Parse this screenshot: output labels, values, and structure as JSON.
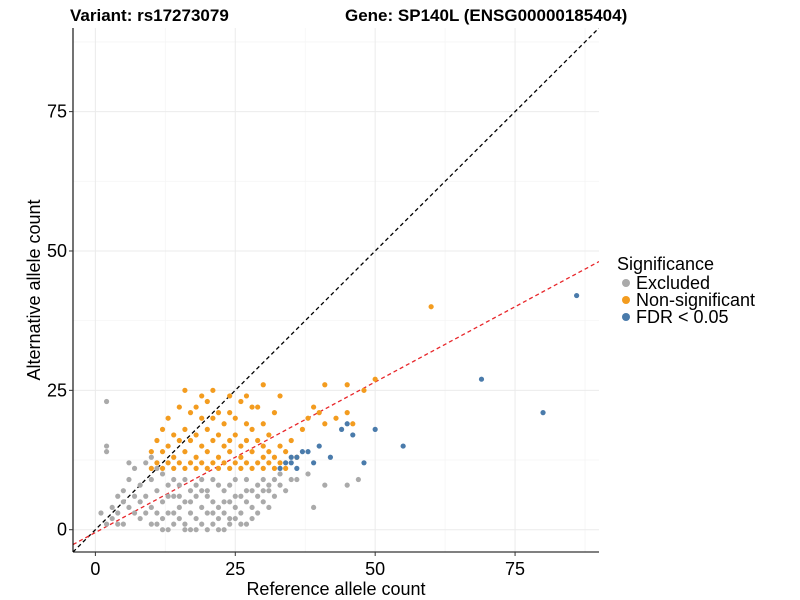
{
  "chart_data": {
    "type": "scatter",
    "title_left": "Variant: rs17273079",
    "title_right": "Gene: SP140L (ENSG00000185404)",
    "xlabel": "Reference allele count",
    "ylabel": "Alternative allele count",
    "xlim": [
      -4,
      90
    ],
    "ylim": [
      -4,
      90
    ],
    "xticks": [
      0,
      25,
      50,
      75
    ],
    "yticks": [
      0,
      25,
      50,
      75
    ],
    "xtick_labels": [
      "0",
      "25",
      "50",
      "75"
    ],
    "ytick_labels": [
      "0",
      "25",
      "50",
      "75"
    ],
    "legend": {
      "title": "Significance",
      "items": [
        {
          "label": "Excluded",
          "color": "#aaaaaa"
        },
        {
          "label": "Non-significant",
          "color": "#f39c1f"
        },
        {
          "label": "FDR < 0.05",
          "color": "#4a7bab"
        }
      ]
    },
    "reference_lines": [
      {
        "name": "identity",
        "slope": 1,
        "intercept": 0,
        "color": "#000000",
        "dash": "dashed"
      },
      {
        "name": "regression",
        "slope": 0.54,
        "intercept": -0.5,
        "color": "#e8262a",
        "dash": "dashed"
      }
    ],
    "series": [
      {
        "name": "Excluded",
        "color": "#aaaaaa",
        "points": [
          [
            2,
            23
          ],
          [
            2,
            15
          ],
          [
            2,
            14
          ],
          [
            1,
            3
          ],
          [
            2,
            1
          ],
          [
            3,
            2
          ],
          [
            3,
            4
          ],
          [
            4,
            3
          ],
          [
            4,
            6
          ],
          [
            5,
            5
          ],
          [
            5,
            7
          ],
          [
            6,
            4
          ],
          [
            6,
            9
          ],
          [
            6,
            12
          ],
          [
            7,
            6
          ],
          [
            7,
            11
          ],
          [
            8,
            2
          ],
          [
            8,
            8
          ],
          [
            5,
            1
          ],
          [
            4,
            1
          ],
          [
            9,
            3
          ],
          [
            9,
            6
          ],
          [
            9,
            12
          ],
          [
            10,
            4
          ],
          [
            10,
            9
          ],
          [
            10,
            13
          ],
          [
            11,
            1
          ],
          [
            11,
            7
          ],
          [
            11,
            11
          ],
          [
            12,
            2
          ],
          [
            12,
            5
          ],
          [
            12,
            10
          ],
          [
            13,
            0
          ],
          [
            13,
            3
          ],
          [
            13,
            8
          ],
          [
            14,
            1
          ],
          [
            14,
            6
          ],
          [
            14,
            9
          ],
          [
            15,
            2
          ],
          [
            15,
            4
          ],
          [
            15,
            8
          ],
          [
            16,
            1
          ],
          [
            16,
            5
          ],
          [
            16,
            9
          ],
          [
            17,
            0
          ],
          [
            17,
            3
          ],
          [
            17,
            7
          ],
          [
            18,
            2
          ],
          [
            18,
            6
          ],
          [
            18,
            8
          ],
          [
            19,
            1
          ],
          [
            19,
            4
          ],
          [
            19,
            9
          ],
          [
            20,
            3
          ],
          [
            20,
            6
          ],
          [
            20,
            7
          ],
          [
            21,
            1
          ],
          [
            21,
            5
          ],
          [
            21,
            9
          ],
          [
            22,
            2
          ],
          [
            22,
            4
          ],
          [
            22,
            8
          ],
          [
            23,
            0
          ],
          [
            23,
            3
          ],
          [
            23,
            7
          ],
          [
            24,
            1
          ],
          [
            24,
            5
          ],
          [
            24,
            8
          ],
          [
            25,
            2
          ],
          [
            25,
            4
          ],
          [
            25,
            9
          ],
          [
            26,
            3
          ],
          [
            26,
            6
          ],
          [
            27,
            1
          ],
          [
            27,
            5
          ],
          [
            27,
            9
          ],
          [
            28,
            2
          ],
          [
            28,
            4
          ],
          [
            28,
            7
          ],
          [
            29,
            3
          ],
          [
            29,
            6
          ],
          [
            30,
            5
          ],
          [
            30,
            9
          ],
          [
            31,
            4
          ],
          [
            31,
            7
          ],
          [
            32,
            6
          ],
          [
            32,
            9
          ],
          [
            33,
            8
          ],
          [
            34,
            7
          ],
          [
            35,
            9
          ],
          [
            24,
            2
          ],
          [
            26,
            1
          ],
          [
            22,
            0
          ],
          [
            16,
            0
          ],
          [
            30,
            7
          ],
          [
            12,
            0
          ],
          [
            18,
            0
          ],
          [
            14,
            3
          ],
          [
            20,
            0
          ],
          [
            10,
            1
          ],
          [
            8,
            5
          ],
          [
            7,
            3
          ],
          [
            11,
            3
          ],
          [
            13,
            6
          ],
          [
            15,
            6
          ],
          [
            17,
            5
          ],
          [
            19,
            7
          ],
          [
            21,
            3
          ],
          [
            23,
            5
          ],
          [
            25,
            6
          ],
          [
            27,
            7
          ],
          [
            29,
            8
          ],
          [
            31,
            8
          ],
          [
            33,
            10
          ],
          [
            36,
            9
          ],
          [
            38,
            10
          ],
          [
            39,
            4
          ],
          [
            41,
            8
          ],
          [
            45,
            8
          ],
          [
            47,
            9
          ]
        ]
      },
      {
        "name": "Non-significant",
        "color": "#f39c1f",
        "points": [
          [
            10,
            11
          ],
          [
            10,
            14
          ],
          [
            11,
            12
          ],
          [
            11,
            16
          ],
          [
            12,
            11
          ],
          [
            12,
            14
          ],
          [
            12,
            18
          ],
          [
            13,
            12
          ],
          [
            13,
            15
          ],
          [
            13,
            20
          ],
          [
            14,
            11
          ],
          [
            14,
            13
          ],
          [
            14,
            17
          ],
          [
            15,
            12
          ],
          [
            15,
            16
          ],
          [
            15,
            22
          ],
          [
            16,
            11
          ],
          [
            16,
            14
          ],
          [
            16,
            18
          ],
          [
            17,
            12
          ],
          [
            17,
            16
          ],
          [
            17,
            21
          ],
          [
            18,
            11
          ],
          [
            18,
            13
          ],
          [
            18,
            17
          ],
          [
            19,
            12
          ],
          [
            19,
            15
          ],
          [
            19,
            20
          ],
          [
            20,
            11
          ],
          [
            20,
            14
          ],
          [
            20,
            18
          ],
          [
            20,
            23
          ],
          [
            21,
            12
          ],
          [
            21,
            16
          ],
          [
            21,
            25
          ],
          [
            22,
            11
          ],
          [
            22,
            13
          ],
          [
            22,
            17
          ],
          [
            22,
            21
          ],
          [
            23,
            12
          ],
          [
            23,
            15
          ],
          [
            23,
            19
          ],
          [
            24,
            11
          ],
          [
            24,
            14
          ],
          [
            24,
            16
          ],
          [
            25,
            12
          ],
          [
            25,
            17
          ],
          [
            25,
            20
          ],
          [
            26,
            11
          ],
          [
            26,
            13
          ],
          [
            26,
            15
          ],
          [
            26,
            23
          ],
          [
            27,
            12
          ],
          [
            27,
            16
          ],
          [
            27,
            19
          ],
          [
            28,
            11
          ],
          [
            28,
            14
          ],
          [
            28,
            18
          ],
          [
            29,
            12
          ],
          [
            29,
            16
          ],
          [
            29,
            22
          ],
          [
            30,
            11
          ],
          [
            30,
            13
          ],
          [
            30,
            15
          ],
          [
            30,
            19
          ],
          [
            31,
            12
          ],
          [
            31,
            14
          ],
          [
            31,
            17
          ],
          [
            32,
            11
          ],
          [
            32,
            13
          ],
          [
            32,
            21
          ],
          [
            33,
            12
          ],
          [
            33,
            15
          ],
          [
            34,
            11
          ],
          [
            34,
            14
          ],
          [
            35,
            16
          ],
          [
            36,
            13
          ],
          [
            37,
            18
          ],
          [
            38,
            20
          ],
          [
            39,
            22
          ],
          [
            40,
            21
          ],
          [
            41,
            19
          ],
          [
            43,
            20
          ],
          [
            45,
            21
          ],
          [
            46,
            19
          ],
          [
            48,
            25
          ],
          [
            50,
            27
          ],
          [
            60,
            40
          ],
          [
            16,
            25
          ],
          [
            18,
            22
          ],
          [
            24,
            24
          ],
          [
            27,
            24
          ],
          [
            30,
            26
          ],
          [
            33,
            24
          ],
          [
            41,
            26
          ],
          [
            45,
            26
          ],
          [
            21,
            20
          ],
          [
            24,
            21
          ],
          [
            19,
            24
          ],
          [
            28,
            22
          ]
        ]
      },
      {
        "name": "FDR < 0.05",
        "color": "#4a7bab",
        "points": [
          [
            33,
            11
          ],
          [
            34,
            12
          ],
          [
            35,
            12
          ],
          [
            35,
            13
          ],
          [
            36,
            13
          ],
          [
            36,
            11
          ],
          [
            37,
            14
          ],
          [
            38,
            14
          ],
          [
            39,
            12
          ],
          [
            40,
            15
          ],
          [
            42,
            13
          ],
          [
            44,
            18
          ],
          [
            45,
            19
          ],
          [
            46,
            17
          ],
          [
            48,
            12
          ],
          [
            50,
            18
          ],
          [
            55,
            15
          ],
          [
            69,
            27
          ],
          [
            80,
            21
          ],
          [
            86,
            42
          ]
        ]
      }
    ]
  }
}
